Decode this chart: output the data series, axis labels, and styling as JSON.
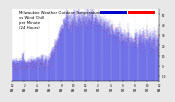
{
  "title_line1": "Milwaukee Weather Outdoor Temperature",
  "title_line2": "vs Wind Chill",
  "title_line3": "per Minute",
  "title_line4": "(24 Hours)",
  "title_fontsize": 2.8,
  "bg_color": "#e8e8e8",
  "plot_bg": "#ffffff",
  "bar_color": "#0000dd",
  "dot_color": "#ff0000",
  "ylim_min": -15,
  "ylim_max": 55,
  "num_points": 1440,
  "tick_fontsize": 2.0,
  "ytick_right": true,
  "legend_blue": "#0000cc",
  "legend_red": "#ff0000"
}
